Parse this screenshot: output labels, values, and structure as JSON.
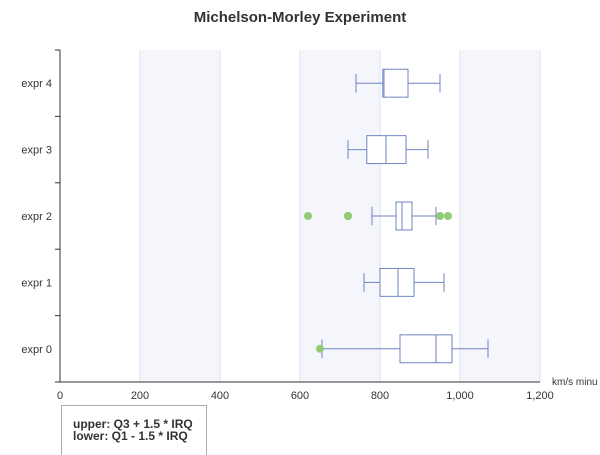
{
  "chart_data": {
    "type": "boxplot",
    "orientation": "horizontal",
    "title": "Michelson-Morley Experiment",
    "xlabel": "km/s minu",
    "ylabel": "",
    "xlim": [
      0,
      1200
    ],
    "x_ticks": [
      "0",
      "200",
      "400",
      "600",
      "800",
      "1,000",
      "1,200"
    ],
    "categories": [
      "expr 0",
      "expr 1",
      "expr 2",
      "expr 3",
      "expr 4"
    ],
    "boxes": [
      {
        "category": "expr 0",
        "low": 655,
        "q1": 850,
        "median": 940,
        "q3": 980,
        "high": 1070
      },
      {
        "category": "expr 1",
        "low": 760,
        "q1": 800,
        "median": 845,
        "q3": 885,
        "high": 960
      },
      {
        "category": "expr 2",
        "low": 780,
        "q1": 840,
        "median": 855,
        "q3": 880,
        "high": 940
      },
      {
        "category": "expr 3",
        "low": 720,
        "q1": 767,
        "median": 815,
        "q3": 865,
        "high": 920
      },
      {
        "category": "expr 4",
        "low": 740,
        "q1": 807,
        "median": 810,
        "q3": 870,
        "high": 950
      }
    ],
    "outliers": [
      {
        "category": "expr 0",
        "value": 650
      },
      {
        "category": "expr 2",
        "value": 620
      },
      {
        "category": "expr 2",
        "value": 720
      },
      {
        "category": "expr 2",
        "value": 720
      },
      {
        "category": "expr 2",
        "value": 950
      },
      {
        "category": "expr 2",
        "value": 970
      }
    ],
    "annotation": {
      "upper": "upper: Q3 + 1.5 * IRQ",
      "lower": "lower: Q1 - 1.5 * IRQ"
    },
    "colors": {
      "box": "#6e83c4",
      "outlier": "#91cc75",
      "band": "#f4f6fb",
      "grid": "#dde3f0",
      "axis": "#333333"
    },
    "grid": true
  }
}
